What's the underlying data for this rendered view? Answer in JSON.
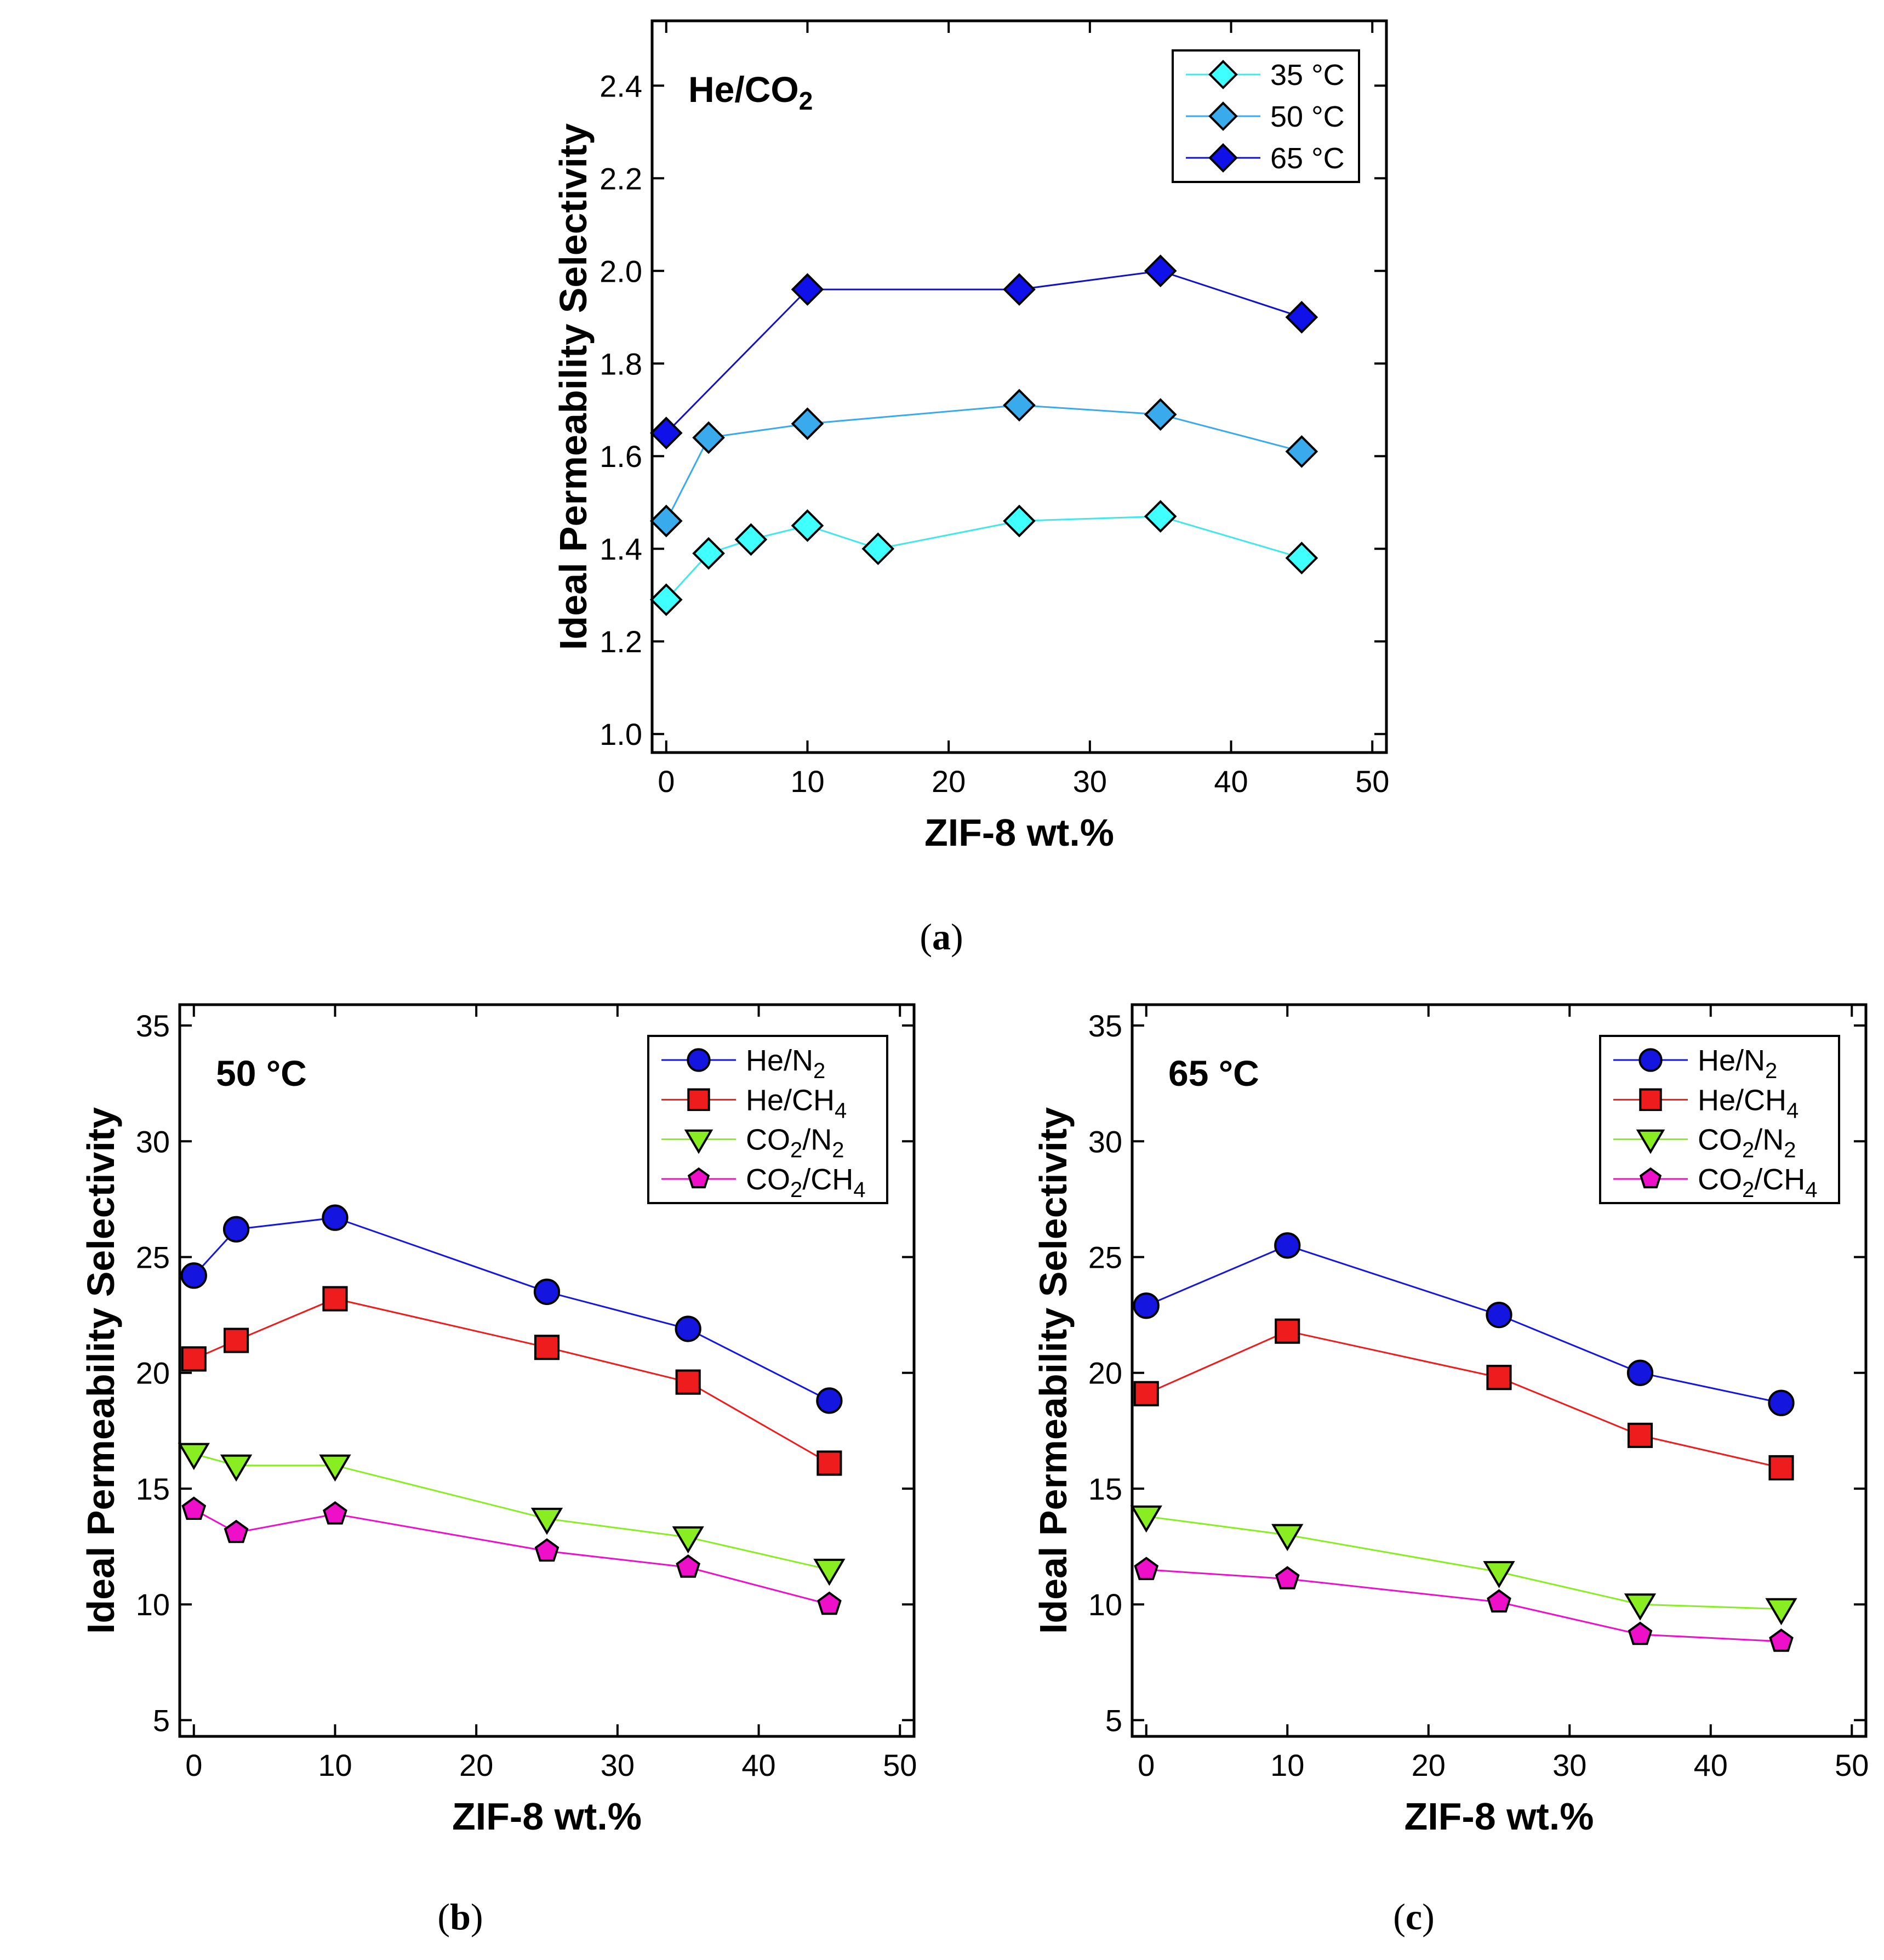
{
  "chart_data": [
    {
      "id": "a",
      "type": "line",
      "panel_label": "a",
      "annotation": {
        "text": "He/CO",
        "sub": "2"
      },
      "xlabel": "ZIF-8 wt.%",
      "ylabel": "Ideal Permeability Selectivity",
      "xlim": [
        -1,
        51
      ],
      "ylim": [
        0.96,
        2.54
      ],
      "xticks": [
        0,
        10,
        20,
        30,
        40,
        50
      ],
      "yticks": [
        1.0,
        1.2,
        1.4,
        1.6,
        1.8,
        2.0,
        2.2,
        2.4
      ],
      "ytick_labels": [
        "1.0",
        "1.2",
        "1.4",
        "1.6",
        "1.8",
        "2.0",
        "2.2",
        "2.4"
      ],
      "legend_position": "top-right",
      "series": [
        {
          "name": "35 °C",
          "marker": "diamond",
          "color": "#40ffff",
          "line_color": "#40e8e8",
          "x": [
            0,
            3,
            6,
            10,
            15,
            25,
            35,
            45
          ],
          "y": [
            1.29,
            1.39,
            1.42,
            1.45,
            1.4,
            1.46,
            1.47,
            1.38
          ]
        },
        {
          "name": "50 °C",
          "marker": "diamond",
          "color": "#39aaec",
          "line_color": "#39aaec",
          "x": [
            0,
            3,
            10,
            25,
            35,
            45
          ],
          "y": [
            1.46,
            1.64,
            1.67,
            1.71,
            1.69,
            1.61
          ]
        },
        {
          "name": "65 °C",
          "marker": "diamond",
          "color": "#1010e8",
          "line_color": "#1010c8",
          "x": [
            0,
            10,
            25,
            35,
            45
          ],
          "y": [
            1.65,
            1.96,
            1.96,
            2.0,
            1.9
          ]
        }
      ]
    },
    {
      "id": "b",
      "type": "line",
      "panel_label": "b",
      "annotation": {
        "text": "50 °C",
        "sub": ""
      },
      "xlabel": "ZIF-8 wt.%",
      "ylabel": "Ideal Permeability Selectivity",
      "xlim": [
        -1,
        51
      ],
      "ylim": [
        4.3,
        35.9
      ],
      "xticks": [
        0,
        10,
        20,
        30,
        40,
        50
      ],
      "yticks": [
        5,
        10,
        15,
        20,
        25,
        30,
        35
      ],
      "ytick_labels": [
        "5",
        "10",
        "15",
        "20",
        "25",
        "30",
        "35"
      ],
      "legend_position": "top-right",
      "series": [
        {
          "name": "He/N",
          "sub": "2",
          "tail": "",
          "marker": "circle",
          "color": "#1515e0",
          "line_color": "#1515e0",
          "x": [
            0,
            3,
            10,
            25,
            35,
            45
          ],
          "y": [
            24.2,
            26.2,
            26.7,
            23.5,
            21.9,
            18.8
          ]
        },
        {
          "name": "He/CH",
          "sub": "4",
          "tail": "",
          "marker": "square",
          "color": "#ee1c1c",
          "line_color": "#ee1c1c",
          "x": [
            0,
            3,
            10,
            25,
            35,
            45
          ],
          "y": [
            20.6,
            21.4,
            23.2,
            21.1,
            19.6,
            16.1
          ]
        },
        {
          "name": "CO",
          "sub": "2",
          "tail": "/N₂",
          "marker": "triangle-down",
          "color": "#88ee22",
          "line_color": "#88ee22",
          "x": [
            0,
            3,
            10,
            25,
            35,
            45
          ],
          "y": [
            16.5,
            16.0,
            16.0,
            13.7,
            12.9,
            11.5
          ]
        },
        {
          "name": "CO",
          "sub": "2",
          "tail": "/CH₄",
          "marker": "pentagon",
          "color": "#ee10c8",
          "line_color": "#ee10c8",
          "x": [
            0,
            3,
            10,
            25,
            35,
            45
          ],
          "y": [
            14.1,
            13.1,
            13.9,
            12.3,
            11.6,
            10.0
          ]
        }
      ]
    },
    {
      "id": "c",
      "type": "line",
      "panel_label": "c",
      "annotation": {
        "text": "65 °C",
        "sub": ""
      },
      "xlabel": "ZIF-8 wt.%",
      "ylabel": "Ideal Permeability Selectivity",
      "xlim": [
        -1,
        51
      ],
      "ylim": [
        4.3,
        35.9
      ],
      "xticks": [
        0,
        10,
        20,
        30,
        40,
        50
      ],
      "yticks": [
        5,
        10,
        15,
        20,
        25,
        30,
        35
      ],
      "ytick_labels": [
        "5",
        "10",
        "15",
        "20",
        "25",
        "30",
        "35"
      ],
      "legend_position": "top-right",
      "series": [
        {
          "name": "He/N",
          "sub": "2",
          "tail": "",
          "marker": "circle",
          "color": "#1515e0",
          "line_color": "#1515e0",
          "x": [
            0,
            10,
            25,
            35,
            45
          ],
          "y": [
            22.9,
            25.5,
            22.5,
            20.0,
            18.7
          ]
        },
        {
          "name": "He/CH",
          "sub": "4",
          "tail": "",
          "marker": "square",
          "color": "#ee1c1c",
          "line_color": "#ee1c1c",
          "x": [
            0,
            10,
            25,
            35,
            45
          ],
          "y": [
            19.1,
            21.8,
            19.8,
            17.3,
            15.9
          ]
        },
        {
          "name": "CO",
          "sub": "2",
          "tail": "/N₂",
          "marker": "triangle-down",
          "color": "#88ee22",
          "line_color": "#88ee22",
          "x": [
            0,
            10,
            25,
            35,
            45
          ],
          "y": [
            13.8,
            13.0,
            11.4,
            10.0,
            9.8
          ]
        },
        {
          "name": "CO",
          "sub": "2",
          "tail": "/CH₄",
          "marker": "pentagon",
          "color": "#ee10c8",
          "line_color": "#ee10c8",
          "x": [
            0,
            10,
            25,
            35,
            45
          ],
          "y": [
            11.5,
            11.1,
            10.1,
            8.7,
            8.4
          ]
        }
      ]
    }
  ]
}
